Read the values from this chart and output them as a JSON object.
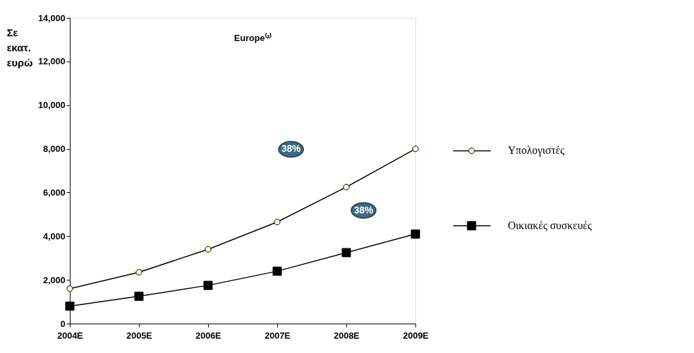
{
  "chart_data": {
    "type": "line",
    "title": "Europe⁽²⁾",
    "ylabel": "Σε\nεκατ.\nευρώ",
    "categories": [
      "2004E",
      "2005E",
      "2006E",
      "2007E",
      "2008E",
      "2009E"
    ],
    "series": [
      {
        "name": "Υπολογιστές",
        "color": "#000000",
        "marker": "circle",
        "values": [
          1600,
          2350,
          3400,
          4650,
          6250,
          8000
        ]
      },
      {
        "name": "Οικιακές συσκευές",
        "color": "#000000",
        "marker": "square",
        "values": [
          800,
          1250,
          1750,
          2400,
          3250,
          4100
        ]
      }
    ],
    "annotations": [
      "38%",
      "38%"
    ],
    "ylim": [
      0,
      14000
    ],
    "yticks": [
      0,
      {
        "value": 2000,
        "label": "2,000"
      },
      {
        "value": 4000,
        "label": "4,000"
      },
      {
        "value": 6000,
        "label": "6,000"
      },
      {
        "value": 8000,
        "label": "8,000"
      },
      {
        "value": 10000,
        "label": "10,000"
      },
      {
        "value": 12000,
        "label": "12,000"
      },
      {
        "value": 14000,
        "label": "14,000"
      }
    ],
    "grid": false,
    "legend": "right",
    "line_style": "solid"
  }
}
